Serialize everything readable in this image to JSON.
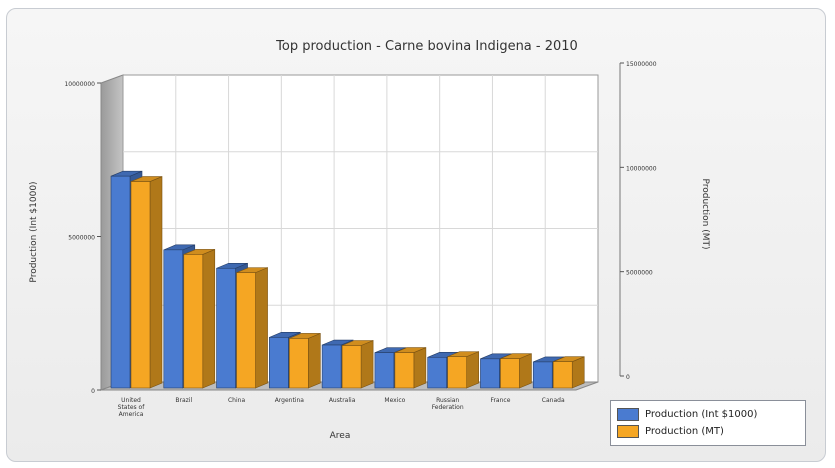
{
  "chart_data": {
    "type": "bar",
    "title": "Top production - Carne bovina Indigena - 2010",
    "xlabel": "Area",
    "ylabel_left": "Production (Int $1000)",
    "ylabel_right": "Production (MT)",
    "categories": [
      "United States of America",
      "Brazil",
      "China",
      "Argentina",
      "Australia",
      "Mexico",
      "Russian Federation",
      "France",
      "Canada"
    ],
    "left_axis": {
      "ylim": [
        0,
        10000000
      ],
      "ticks": [
        "0",
        "5000000",
        "10000000"
      ]
    },
    "right_axis": {
      "ylim": [
        0,
        15000000
      ],
      "ticks": [
        "0",
        "5000000",
        "10000000",
        "15000000"
      ]
    },
    "series": [
      {
        "name": "Production (Int $1000)",
        "axis": "left",
        "color": "#4a7bd0",
        "values": [
          6900000,
          4500000,
          3900000,
          1650000,
          1400000,
          1150000,
          1000000,
          950000,
          850000
        ]
      },
      {
        "name": "Production (MT)",
        "axis": "right",
        "color": "#f5a623",
        "values": [
          10200000,
          6600000,
          5700000,
          2450000,
          2100000,
          1750000,
          1550000,
          1450000,
          1300000
        ]
      }
    ],
    "grid": true,
    "legend": "bottom-right"
  }
}
